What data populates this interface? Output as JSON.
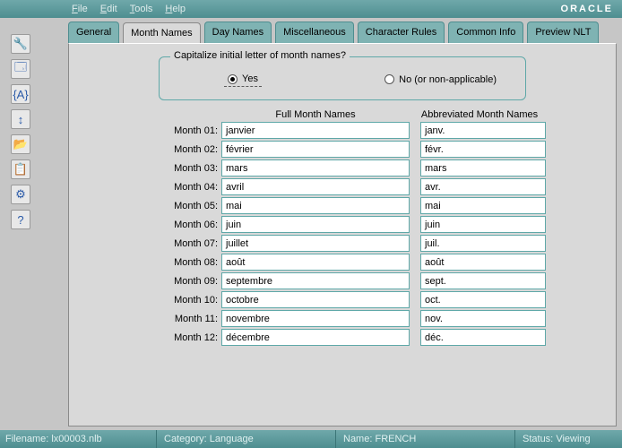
{
  "menu": {
    "items": [
      "File",
      "Edit",
      "Tools",
      "Help"
    ]
  },
  "brand": "ORACLE",
  "tabs": [
    "General",
    "Month Names",
    "Day Names",
    "Miscellaneous",
    "Character Rules",
    "Common Info",
    "Preview NLT"
  ],
  "active_tab_index": 1,
  "sidebar": {
    "icons": [
      "🔧",
      "🗔",
      "{A}",
      "↕",
      "📂",
      "📋",
      "⚙",
      "?"
    ]
  },
  "group": {
    "title": "Capitalize initial letter of month names?",
    "options": [
      "Yes",
      "No (or non-applicable)"
    ],
    "selected_index": 0
  },
  "columns": {
    "full": "Full Month Names",
    "abbr": "Abbreviated Month Names"
  },
  "row_label_prefix": "Month",
  "months": [
    {
      "num": "01",
      "full": "janvier",
      "abbr": "janv."
    },
    {
      "num": "02",
      "full": "février",
      "abbr": "févr."
    },
    {
      "num": "03",
      "full": "mars",
      "abbr": "mars"
    },
    {
      "num": "04",
      "full": "avril",
      "abbr": "avr."
    },
    {
      "num": "05",
      "full": "mai",
      "abbr": "mai"
    },
    {
      "num": "06",
      "full": "juin",
      "abbr": "juin"
    },
    {
      "num": "07",
      "full": "juillet",
      "abbr": "juil."
    },
    {
      "num": "08",
      "full": "août",
      "abbr": "août"
    },
    {
      "num": "09",
      "full": "septembre",
      "abbr": "sept."
    },
    {
      "num": "10",
      "full": "octobre",
      "abbr": "oct."
    },
    {
      "num": "11",
      "full": "novembre",
      "abbr": "nov."
    },
    {
      "num": "12",
      "full": "décembre",
      "abbr": "déc."
    }
  ],
  "status": {
    "filename_label": "Filename:",
    "filename_value": "lx00003.nlb",
    "category_label": "Category:",
    "category_value": "Language",
    "name_label": "Name:",
    "name_value": "FRENCH",
    "status_label": "Status:",
    "status_value": "Viewing"
  },
  "colors": {
    "teal": "#5f9ea0",
    "tab_inactive": "#7fb3b3",
    "panel": "#d9d9d9",
    "field_border": "#5fa8a8"
  }
}
